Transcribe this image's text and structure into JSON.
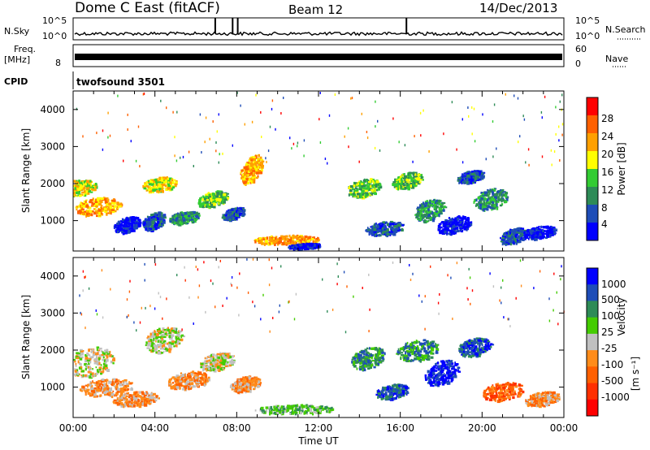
{
  "chart_data": [
    {
      "type": "line",
      "title": "Dome C East (fitACF)",
      "beam_label": "Beam 12",
      "date_label": "14/Dec/2013",
      "left_label": "N.Sky",
      "right_label": "N.Search",
      "left_ticks": [
        "10^5",
        "10^0"
      ],
      "right_ticks": [
        "10^5",
        "10^0"
      ],
      "x": [
        "00:00",
        "04:00",
        "08:00",
        "12:00",
        "16:00",
        "20:00",
        "00:00"
      ],
      "y_scale": "log",
      "series": [
        {
          "values_level": 0.28,
          "spikes_at_hours": [
            6.95,
            7.8,
            8.05,
            16.3
          ]
        }
      ]
    },
    {
      "type": "line",
      "left_label_1": "Freq.",
      "left_label_2": "[MHz]",
      "left_ticks": [
        "8"
      ],
      "right_label": "Nave",
      "right_ticks": [
        "60",
        "0"
      ],
      "cpid_label": "CPID",
      "cpid_value": "twofsound 3501",
      "series": [
        {
          "values_level": 0.5
        }
      ]
    },
    {
      "type": "heatmap",
      "ylabel": "Slant Range [km]",
      "y_ticks": [
        "4000",
        "3000",
        "2000",
        "1000"
      ],
      "y_values": [
        4000,
        3000,
        2000,
        1000
      ],
      "ylim": [
        180,
        4500
      ],
      "x_tick_labels": [
        "00:00",
        "04:00",
        "08:00",
        "12:00",
        "16:00",
        "20:00",
        "00:00"
      ],
      "xlim_hours": [
        0,
        24
      ],
      "colorbar_label": "Power [dB]",
      "colorbar_ticks": [
        "28",
        "24",
        "20",
        "16",
        "12",
        "8",
        "4"
      ],
      "colorbar_colors": [
        "#ff0000",
        "#ff6000",
        "#ffa000",
        "#ffff00",
        "#33cc33",
        "#2e8b57",
        "#1e4db7",
        "#0000ff"
      ],
      "echo_blobs": [
        {
          "t": 0.2,
          "r": 1900,
          "dt": 1.8,
          "dr": 450,
          "level": 3
        },
        {
          "t": 1.2,
          "r": 1400,
          "dt": 2.2,
          "dr": 500,
          "level": 2
        },
        {
          "t": 2.6,
          "r": 900,
          "dt": 1.2,
          "dr": 450,
          "level": 7
        },
        {
          "t": 3.9,
          "r": 1000,
          "dt": 1.0,
          "dr": 500,
          "level": 6
        },
        {
          "t": 4.2,
          "r": 2000,
          "dt": 1.6,
          "dr": 400,
          "level": 3
        },
        {
          "t": 5.4,
          "r": 1100,
          "dt": 1.4,
          "dr": 350,
          "level": 5
        },
        {
          "t": 6.8,
          "r": 1600,
          "dt": 1.4,
          "dr": 450,
          "level": 4
        },
        {
          "t": 7.8,
          "r": 1200,
          "dt": 1.0,
          "dr": 350,
          "level": 6
        },
        {
          "t": 8.7,
          "r": 2400,
          "dt": 1.0,
          "dr": 800,
          "level": 2
        },
        {
          "t": 10.4,
          "r": 500,
          "dt": 3.2,
          "dr": 250,
          "level": 2
        },
        {
          "t": 11.3,
          "r": 330,
          "dt": 1.6,
          "dr": 150,
          "level": 7
        },
        {
          "t": 14.2,
          "r": 1900,
          "dt": 1.6,
          "dr": 500,
          "level": 4
        },
        {
          "t": 15.2,
          "r": 800,
          "dt": 1.8,
          "dr": 400,
          "level": 6
        },
        {
          "t": 16.3,
          "r": 2100,
          "dt": 1.4,
          "dr": 450,
          "level": 4
        },
        {
          "t": 17.4,
          "r": 1300,
          "dt": 1.4,
          "dr": 600,
          "level": 5
        },
        {
          "t": 18.6,
          "r": 900,
          "dt": 1.6,
          "dr": 500,
          "level": 7
        },
        {
          "t": 19.4,
          "r": 2200,
          "dt": 1.2,
          "dr": 350,
          "level": 6
        },
        {
          "t": 20.4,
          "r": 1600,
          "dt": 1.6,
          "dr": 600,
          "level": 5
        },
        {
          "t": 21.5,
          "r": 600,
          "dt": 1.2,
          "dr": 450,
          "level": 6
        },
        {
          "t": 22.8,
          "r": 700,
          "dt": 1.6,
          "dr": 350,
          "level": 7
        }
      ]
    },
    {
      "type": "heatmap",
      "ylabel": "Slant Range [km]",
      "y_ticks": [
        "4000",
        "3000",
        "2000",
        "1000"
      ],
      "y_values": [
        4000,
        3000,
        2000,
        1000
      ],
      "ylim": [
        180,
        4500
      ],
      "x_tick_labels": [
        "00:00",
        "04:00",
        "08:00",
        "12:00",
        "16:00",
        "20:00",
        "00:00"
      ],
      "xlim_hours": [
        0,
        24
      ],
      "xlabel": "Time UT",
      "colorbar_label": "Velocity",
      "colorbar_unit": "[m s⁻¹]",
      "colorbar_ticks": [
        "1000",
        "500",
        "100",
        "25",
        "-25",
        "-100",
        "-500",
        "-1000"
      ],
      "colorbar_colors": [
        "#0000ff",
        "#1e4db7",
        "#2e8b57",
        "#44cc00",
        "#c0c0c0",
        "#ff8c1a",
        "#ff6000",
        "#ff3000",
        "#ff0000"
      ],
      "echo_blobs": [
        {
          "t": 0.8,
          "r": 1700,
          "dt": 2.4,
          "dr": 800,
          "level": 4
        },
        {
          "t": 1.6,
          "r": 1000,
          "dt": 2.6,
          "dr": 500,
          "level": 5
        },
        {
          "t": 3.0,
          "r": 700,
          "dt": 2.2,
          "dr": 400,
          "level": 5
        },
        {
          "t": 4.4,
          "r": 2300,
          "dt": 1.8,
          "dr": 700,
          "level": 4
        },
        {
          "t": 5.6,
          "r": 1200,
          "dt": 2.0,
          "dr": 500,
          "level": 5
        },
        {
          "t": 7.0,
          "r": 1700,
          "dt": 1.6,
          "dr": 500,
          "level": 4
        },
        {
          "t": 8.4,
          "r": 1100,
          "dt": 1.4,
          "dr": 450,
          "level": 5
        },
        {
          "t": 10.8,
          "r": 420,
          "dt": 3.8,
          "dr": 250,
          "level": 3
        },
        {
          "t": 14.4,
          "r": 1800,
          "dt": 1.6,
          "dr": 600,
          "level": 2
        },
        {
          "t": 15.6,
          "r": 900,
          "dt": 1.6,
          "dr": 400,
          "level": 1
        },
        {
          "t": 16.8,
          "r": 2000,
          "dt": 2.0,
          "dr": 600,
          "level": 2
        },
        {
          "t": 18.0,
          "r": 1400,
          "dt": 1.6,
          "dr": 700,
          "level": 0
        },
        {
          "t": 19.6,
          "r": 2100,
          "dt": 1.6,
          "dr": 500,
          "level": 1
        },
        {
          "t": 21.0,
          "r": 900,
          "dt": 2.0,
          "dr": 500,
          "level": 6
        },
        {
          "t": 22.9,
          "r": 700,
          "dt": 1.6,
          "dr": 400,
          "level": 5
        }
      ]
    }
  ]
}
